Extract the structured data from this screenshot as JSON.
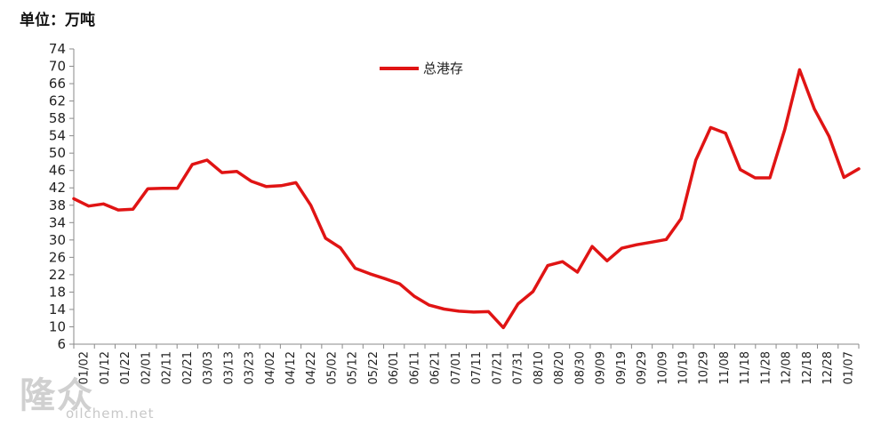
{
  "unit_label": "单位：万吨",
  "watermark": {
    "logo": "隆众",
    "url": "oilchem.net"
  },
  "chart_data": {
    "type": "line",
    "title": "",
    "xlabel": "",
    "ylabel": "",
    "ylim": [
      6,
      74
    ],
    "yticks": [
      6,
      10,
      14,
      18,
      22,
      26,
      30,
      34,
      38,
      42,
      46,
      50,
      54,
      58,
      62,
      66,
      70,
      74
    ],
    "grid": false,
    "legend": "top-center",
    "x_tick_labels": [
      "01/02",
      "01/12",
      "01/22",
      "02/01",
      "02/11",
      "02/21",
      "03/03",
      "03/13",
      "03/23",
      "04/02",
      "04/12",
      "04/22",
      "05/02",
      "05/12",
      "05/22",
      "06/01",
      "06/11",
      "06/21",
      "07/01",
      "07/11",
      "07/21",
      "07/31",
      "08/10",
      "08/20",
      "08/30",
      "09/09",
      "09/19",
      "09/29",
      "10/09",
      "10/19",
      "10/29",
      "11/08",
      "11/18",
      "11/28",
      "12/08",
      "12/18",
      "12/28",
      "01/07"
    ],
    "series": [
      {
        "name": "总港存",
        "color": "#e01414",
        "values": [
          39.5,
          37.8,
          38.3,
          36.9,
          37.1,
          41.8,
          41.9,
          41.9,
          47.4,
          48.4,
          45.5,
          45.8,
          43.5,
          42.3,
          42.5,
          43.2,
          38.0,
          30.4,
          28.2,
          23.5,
          22.2,
          21.1,
          19.9,
          17.0,
          15.0,
          14.1,
          13.6,
          13.4,
          13.5,
          9.8,
          15.3,
          18.1,
          24.1,
          25.0,
          22.6,
          28.5,
          25.2,
          28.1,
          28.9,
          29.5,
          30.1,
          34.9,
          48.4,
          55.9,
          54.6,
          46.2,
          44.3,
          44.3,
          55.4,
          69.2,
          60.2,
          53.8,
          44.4,
          46.4
        ]
      }
    ]
  }
}
